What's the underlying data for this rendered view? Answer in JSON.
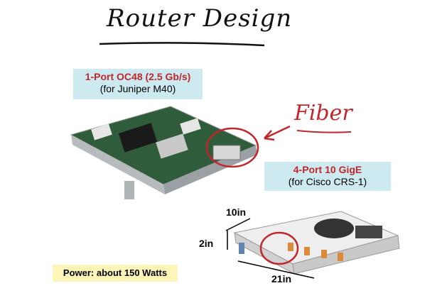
{
  "title": "Router Design",
  "card_oc48": {
    "line1": "1-Port OC48 (2.5 Gb/s)",
    "line2": "(for Juniper M40)"
  },
  "card_gige": {
    "line1": "4-Port 10 GigE",
    "line2": "(for Cisco CRS-1)"
  },
  "annotation": "Fiber",
  "dimensions": {
    "depth": "10in",
    "height": "2in",
    "length": "21in"
  },
  "power": "Power: about 150 Watts",
  "colors": {
    "accent_red": "#c0272d",
    "label_box": "#cdeaf0",
    "power_box": "#fdf6b8"
  }
}
